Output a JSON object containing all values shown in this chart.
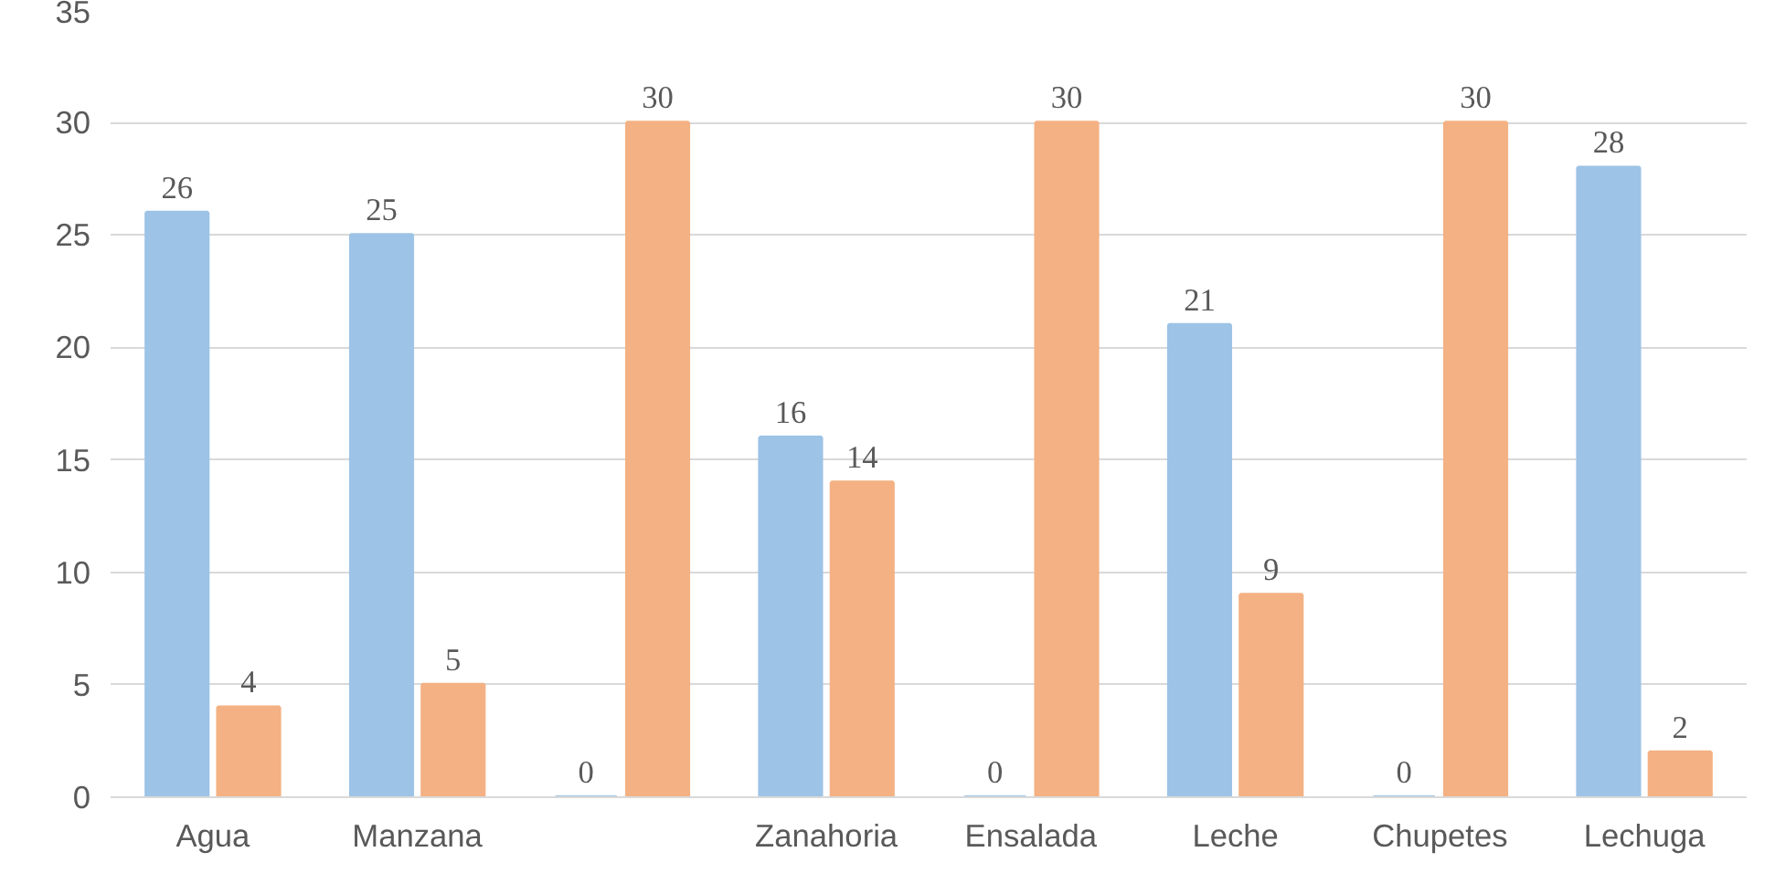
{
  "chart_data": {
    "type": "bar",
    "categories": [
      "Agua",
      "Manzana",
      null,
      "Zanahoria",
      "Ensalada",
      "Leche",
      "Chupetes",
      "Lechuga"
    ],
    "series": [
      {
        "color": "#9dc3e6",
        "values": [
          26,
          25,
          0,
          16,
          0,
          21,
          0,
          28
        ]
      },
      {
        "color": "#f4b183",
        "values": [
          4,
          5,
          30,
          14,
          30,
          9,
          30,
          2
        ]
      }
    ],
    "ylim": [
      0,
      35
    ],
    "yticks": [
      0,
      5,
      10,
      15,
      20,
      25,
      30,
      35
    ],
    "grid": "y",
    "data_labels": true
  }
}
